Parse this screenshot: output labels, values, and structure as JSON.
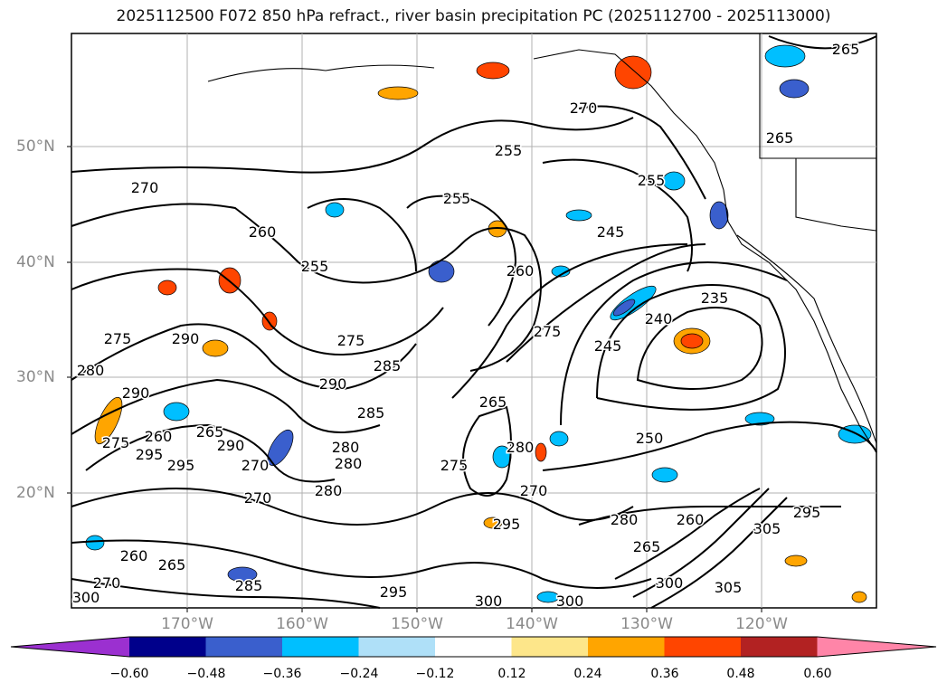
{
  "title": "2025112500 F072 850 hPa refract., river basin precipitation PC (2025112700 - 2025113000)",
  "map": {
    "lat_labels": [
      "50°N",
      "40°N",
      "30°N",
      "20°N"
    ],
    "lon_labels": [
      "170°W",
      "160°W",
      "150°W",
      "140°W",
      "130°W",
      "120°W"
    ],
    "contour_labels": [
      "265",
      "265",
      "255",
      "270",
      "255",
      "245",
      "260",
      "255",
      "270",
      "260",
      "235",
      "240",
      "245",
      "275",
      "275",
      "290",
      "280",
      "290",
      "285",
      "265",
      "290",
      "285",
      "275",
      "280",
      "260",
      "265",
      "295",
      "270",
      "280",
      "270",
      "275",
      "290",
      "270",
      "280",
      "295",
      "300",
      "300",
      "280",
      "265",
      "260",
      "250",
      "295",
      "305",
      "305",
      "300",
      "300",
      "260",
      "265",
      "270",
      "295",
      "285",
      "280",
      "255",
      "275",
      "295"
    ],
    "land_color": "#000000",
    "grid": true
  },
  "colorbar": {
    "tick_labels": [
      "−0.60",
      "−0.48",
      "−0.36",
      "−0.24",
      "−0.12",
      "0.12",
      "0.24",
      "0.36",
      "0.48",
      "0.60"
    ],
    "colors": [
      "#9b30d0",
      "#00008b",
      "#3a5fcd",
      "#00bfff",
      "#afe0f8",
      "#ffffff",
      "#fde68a",
      "#ffa500",
      "#ff4500",
      "#b22222",
      "#ff85a8"
    ],
    "extend": "both"
  }
}
